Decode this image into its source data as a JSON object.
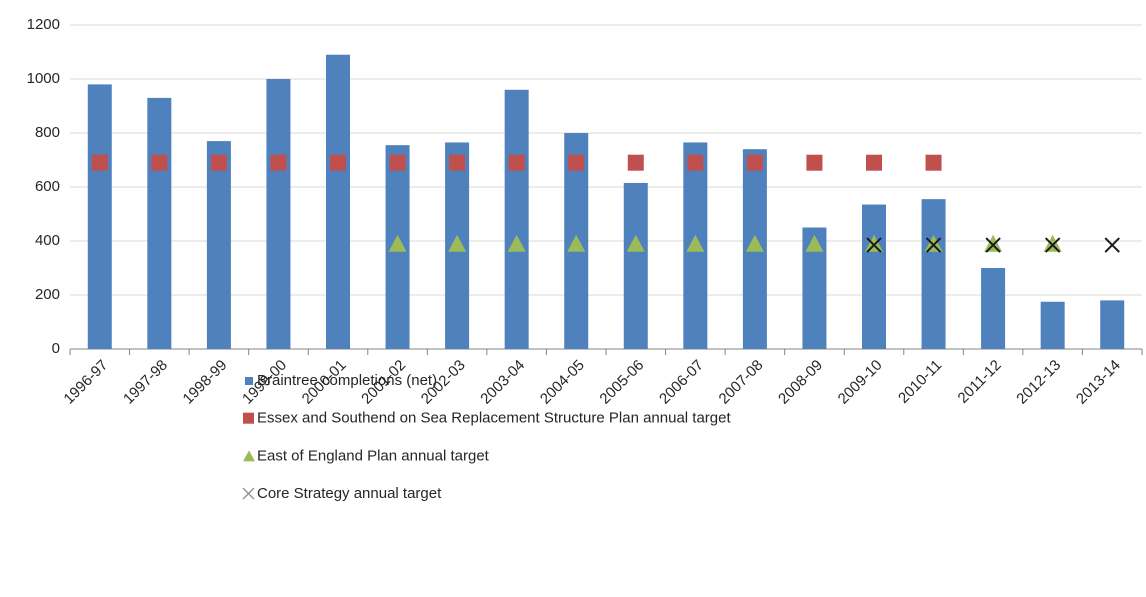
{
  "chart_data": {
    "type": "bar",
    "categories": [
      "1996-97",
      "1997-98",
      "1998-99",
      "1999-00",
      "2000-01",
      "2001-02",
      "2002-03",
      "2003-04",
      "2004-05",
      "2005-06",
      "2006-07",
      "2007-08",
      "2008-09",
      "2009-10",
      "2010-11",
      "2011-12",
      "2012-13",
      "2013-14"
    ],
    "series": [
      {
        "name": "Braintree completions (net)",
        "color": "#4f81bd",
        "marker": "bar",
        "values": [
          980,
          930,
          770,
          1000,
          1090,
          755,
          765,
          960,
          800,
          615,
          765,
          740,
          450,
          535,
          555,
          300,
          175,
          180
        ]
      },
      {
        "name": "Essex and Southend on Sea Replacement Structure Plan annual target",
        "color": "#c0504d",
        "marker": "square",
        "values": [
          690,
          690,
          690,
          690,
          690,
          690,
          690,
          690,
          690,
          690,
          690,
          690,
          690,
          690,
          690,
          null,
          null,
          null
        ]
      },
      {
        "name": "East of England Plan annual target",
        "color": "#9bbb59",
        "marker": "triangle",
        "values": [
          null,
          null,
          null,
          null,
          null,
          390,
          390,
          390,
          390,
          390,
          390,
          390,
          390,
          390,
          390,
          390,
          390,
          null
        ]
      },
      {
        "name": "Core Strategy annual target",
        "color": "#1a1a1a",
        "marker": "x",
        "values": [
          null,
          null,
          null,
          null,
          null,
          null,
          null,
          null,
          null,
          null,
          null,
          null,
          null,
          385,
          385,
          385,
          385,
          385
        ]
      }
    ],
    "ylim": [
      0,
      1200
    ],
    "yticks": [
      0,
      200,
      400,
      600,
      800,
      1000,
      1200
    ],
    "grid": true
  }
}
